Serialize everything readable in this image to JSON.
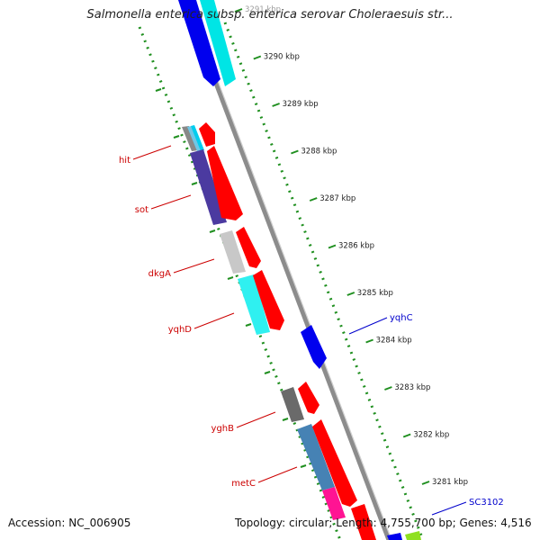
{
  "title": "Salmonella enterica subsp. enterica serovar Choleraesuis str...",
  "footer": {
    "accession": "Accession: NC_006905",
    "topology": "Topology: circular; Length: 4,755,700 bp; Genes: 4,516"
  },
  "colors": {
    "forward_genes": "#ff0000",
    "reverse_labels": "#cc0000",
    "forward_labels": "#0000cc",
    "backbone": "#999999",
    "ticks": "#228b22"
  },
  "ruler": {
    "ticks": [
      {
        "label": "3291 kbp"
      },
      {
        "label": "3290 kbp"
      },
      {
        "label": "3289 kbp"
      },
      {
        "label": "3288 kbp"
      },
      {
        "label": "3287 kbp"
      },
      {
        "label": "3286 kbp"
      },
      {
        "label": "3285 kbp"
      },
      {
        "label": "3284 kbp"
      },
      {
        "label": "3283 kbp"
      },
      {
        "label": "3282 kbp"
      },
      {
        "label": "3281 kbp"
      }
    ]
  },
  "gene_labels": [
    {
      "text": "hit",
      "strand": "reverse"
    },
    {
      "text": "sot",
      "strand": "reverse"
    },
    {
      "text": "dkgA",
      "strand": "reverse"
    },
    {
      "text": "yqhD",
      "strand": "reverse"
    },
    {
      "text": "yqhC",
      "strand": "forward"
    },
    {
      "text": "yghB",
      "strand": "reverse"
    },
    {
      "text": "metC",
      "strand": "reverse"
    },
    {
      "text": "SC3102",
      "strand": "forward"
    }
  ]
}
